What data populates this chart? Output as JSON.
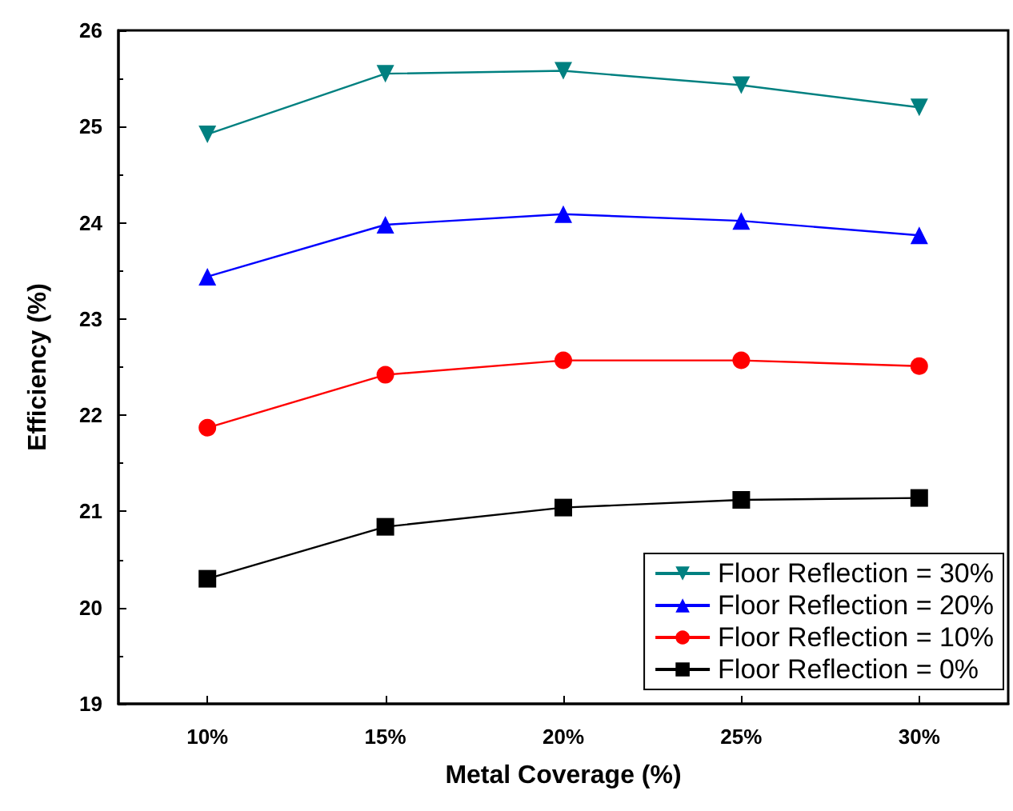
{
  "chart_data": {
    "type": "line",
    "xlabel": "Metal Coverage (%)",
    "ylabel": "Efficiency (%)",
    "categories": [
      "10%",
      "15%",
      "20%",
      "25%",
      "30%"
    ],
    "series": [
      {
        "name": "Floor Reflection = 30%",
        "color": "#008080",
        "marker": "triangle-down",
        "values": [
          24.92,
          25.55,
          25.58,
          25.43,
          25.2
        ]
      },
      {
        "name": "Floor Reflection = 20%",
        "color": "#0000ff",
        "marker": "triangle",
        "values": [
          23.44,
          23.98,
          24.09,
          24.02,
          23.87
        ]
      },
      {
        "name": "Floor Reflection = 10%",
        "color": "#ff0000",
        "marker": "circle",
        "values": [
          21.87,
          22.42,
          22.57,
          22.57,
          22.51
        ]
      },
      {
        "name": "Floor Reflection = 0%",
        "color": "#000000",
        "marker": "square",
        "values": [
          20.3,
          20.84,
          21.04,
          21.12,
          21.14
        ]
      }
    ],
    "ylim": [
      19,
      26
    ],
    "yticks": [
      19,
      20,
      21,
      22,
      23,
      24,
      25,
      26
    ],
    "grid": false,
    "legend": "bottom right",
    "line_style": "solid"
  }
}
